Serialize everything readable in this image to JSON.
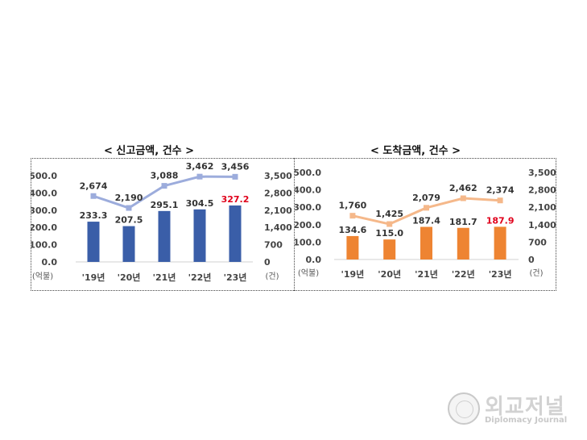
{
  "titles": {
    "left": "< 신고금액, 건수 >",
    "right": "< 도착금액, 건수 >"
  },
  "watermark": {
    "name": "외교저널",
    "sub": "Diplomacy Journal"
  },
  "chart_data": [
    {
      "type": "bar",
      "title": "< 신고금액, 건수 >",
      "categories": [
        "'19년",
        "'20년",
        "'21년",
        "'22년",
        "'23년"
      ],
      "ylabel": "(억불)",
      "y2label": "(건)",
      "ylim": [
        0,
        500
      ],
      "yticks": [
        "500.0",
        "400.0",
        "300.0",
        "200.0",
        "100.0",
        "0.0"
      ],
      "y2lim": [
        0,
        3500
      ],
      "y2ticks": [
        "3,500",
        "2,800",
        "2,100",
        "1,400",
        "700",
        "0"
      ],
      "grid": false,
      "series": [
        {
          "kind": "bar",
          "axis": "left",
          "color": "#3a5ea8",
          "values": [
            233.3,
            207.5,
            295.1,
            304.5,
            327.2
          ],
          "labels": [
            "233.3",
            "207.5",
            "295.1",
            "304.5",
            "327.2"
          ],
          "highlight_color": "#e0001b"
        },
        {
          "kind": "line",
          "axis": "right",
          "color": "#9cacdc",
          "values": [
            2674,
            2190,
            3088,
            3462,
            3456
          ],
          "labels": [
            "2,674",
            "2,190",
            "3,088",
            "3,462",
            "3,456"
          ]
        }
      ]
    },
    {
      "type": "bar",
      "title": "< 도착금액, 건수 >",
      "categories": [
        "'19년",
        "'20년",
        "'21년",
        "'22년",
        "'23년"
      ],
      "ylabel": "(억불)",
      "y2label": "(건)",
      "ylim": [
        0,
        500
      ],
      "yticks": [
        "500.0",
        "400.0",
        "300.0",
        "200.0",
        "100.0",
        "0.0"
      ],
      "y2lim": [
        0,
        3500
      ],
      "y2ticks": [
        "3,500",
        "2,800",
        "2,100",
        "1,400",
        "700",
        "0"
      ],
      "grid": false,
      "series": [
        {
          "kind": "bar",
          "axis": "left",
          "color": "#ee8432",
          "values": [
            134.6,
            115.0,
            187.4,
            181.7,
            187.9
          ],
          "labels": [
            "134.6",
            "115.0",
            "187.4",
            "181.7",
            "187.9"
          ],
          "highlight_color": "#e0001b"
        },
        {
          "kind": "line",
          "axis": "right",
          "color": "#f5b88a",
          "values": [
            1760,
            1425,
            2079,
            2462,
            2374
          ],
          "labels": [
            "1,760",
            "1,425",
            "2,079",
            "2,462",
            "2,374"
          ]
        }
      ]
    }
  ]
}
